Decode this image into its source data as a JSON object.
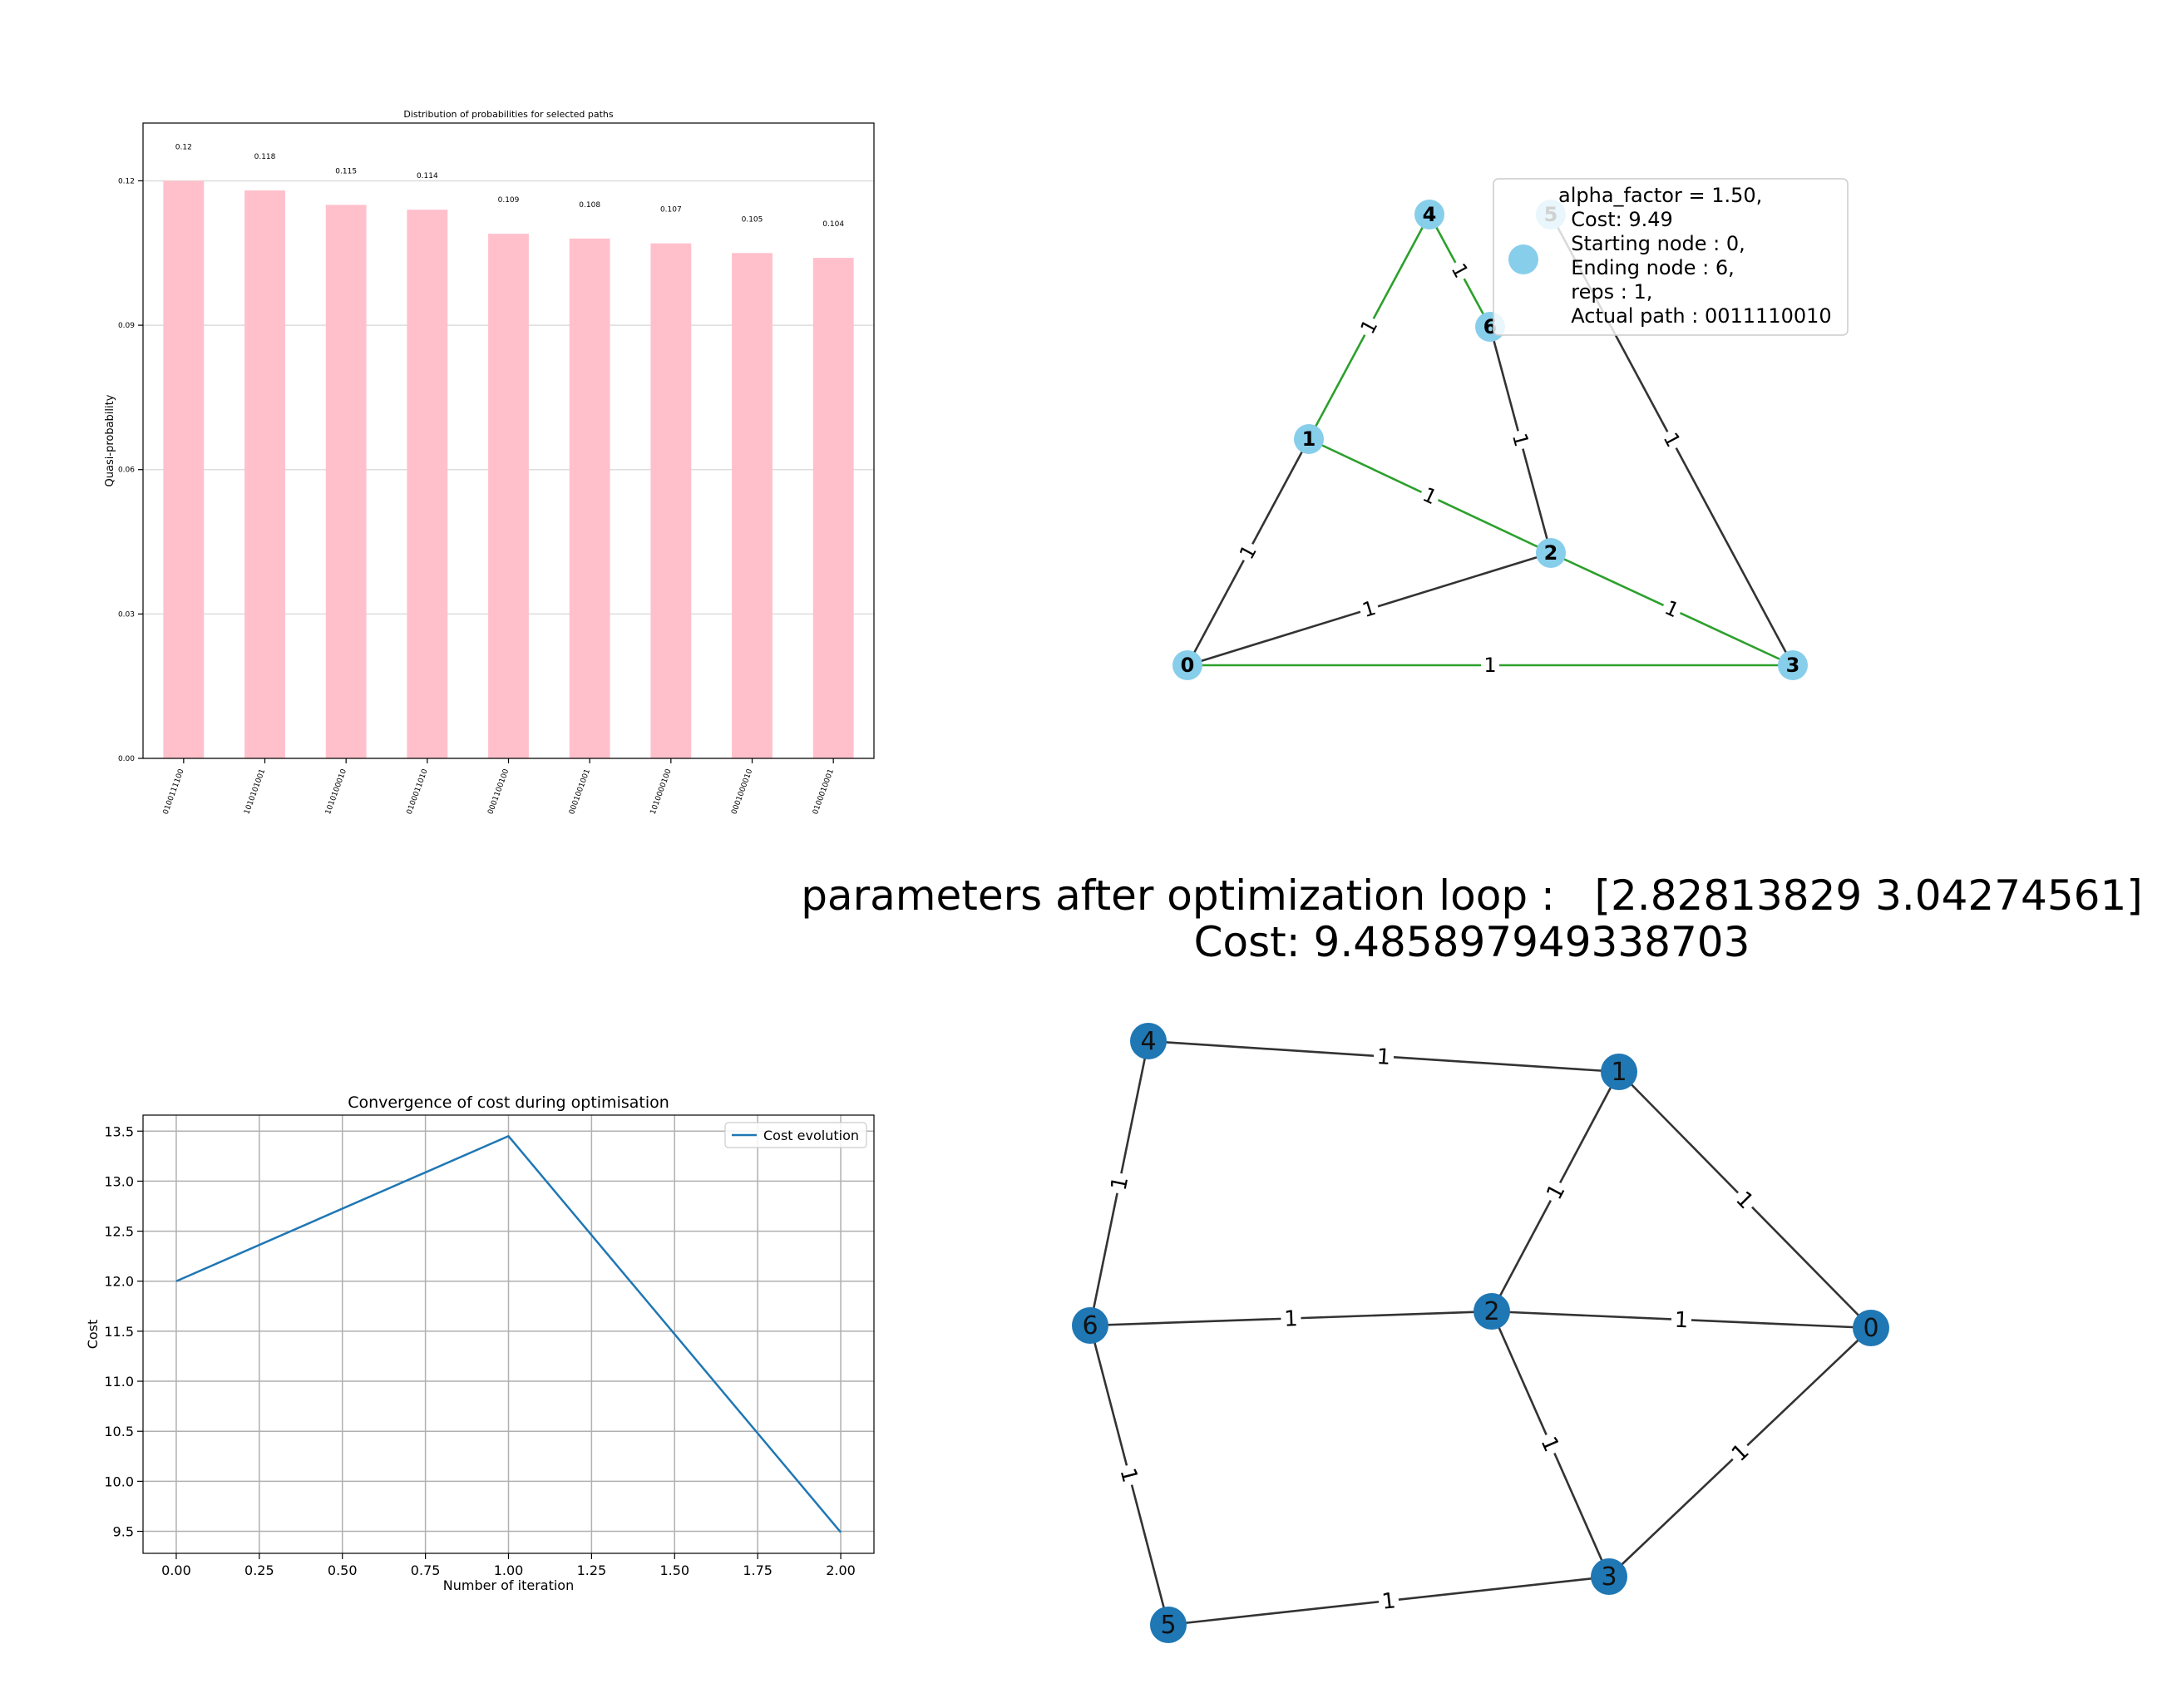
{
  "chart_data": [
    {
      "type": "bar",
      "title": "Distribution of probabilities for selected paths",
      "xlabel": "",
      "ylabel": "Quasi-probability",
      "categories": [
        "0100111100",
        "1010101001",
        "1010100010",
        "0100011010",
        "0001100100",
        "0001001001",
        "1010000100",
        "0001000010",
        "0100010001"
      ],
      "values": [
        0.12,
        0.118,
        0.115,
        0.114,
        0.109,
        0.108,
        0.107,
        0.105,
        0.104
      ],
      "value_labels": [
        "0.12",
        "0.118",
        "0.115",
        "0.114",
        "0.109",
        "0.108",
        "0.107",
        "0.105",
        "0.104"
      ],
      "ylim": [
        0,
        0.132
      ],
      "yticks": [
        0.0,
        0.03,
        0.06,
        0.09,
        0.12
      ],
      "ytick_labels": [
        "0.00",
        "0.03",
        "0.06",
        "0.09",
        "0.12"
      ],
      "grid": "horizontal",
      "bar_color": "#ffc0cb"
    },
    {
      "type": "line",
      "title": "Convergence of cost during optimisation",
      "xlabel": "Number of iteration",
      "ylabel": "Cost",
      "series": [
        {
          "name": "Cost evolution",
          "x": [
            0,
            1,
            2
          ],
          "y": [
            12.0,
            13.45,
            9.49
          ],
          "color": "#1f77b4"
        }
      ],
      "xlim": [
        -0.1,
        2.1
      ],
      "ylim": [
        9.28,
        13.66
      ],
      "xticks": [
        0.0,
        0.25,
        0.5,
        0.75,
        1.0,
        1.25,
        1.5,
        1.75,
        2.0
      ],
      "xtick_labels": [
        "0.00",
        "0.25",
        "0.50",
        "0.75",
        "1.00",
        "1.25",
        "1.50",
        "1.75",
        "2.00"
      ],
      "yticks": [
        9.5,
        10.0,
        10.5,
        11.0,
        11.5,
        12.0,
        12.5,
        13.0,
        13.5
      ],
      "ytick_labels": [
        "9.5",
        "10.0",
        "10.5",
        "11.0",
        "11.5",
        "12.0",
        "12.5",
        "13.0",
        "13.5"
      ],
      "grid": true,
      "legend": "top-right"
    }
  ],
  "graph_top": {
    "node_color": "#87ceeb",
    "path_color": "#2ca02c",
    "edge_color": "#333333",
    "nodes": [
      "0",
      "1",
      "2",
      "3",
      "4",
      "5",
      "6"
    ],
    "edges": [
      {
        "from": "0",
        "to": "1",
        "weight": "1",
        "on_path": false
      },
      {
        "from": "0",
        "to": "2",
        "weight": "1",
        "on_path": false
      },
      {
        "from": "0",
        "to": "3",
        "weight": "1",
        "on_path": true
      },
      {
        "from": "1",
        "to": "2",
        "weight": "1",
        "on_path": true
      },
      {
        "from": "1",
        "to": "4",
        "weight": "1",
        "on_path": true
      },
      {
        "from": "2",
        "to": "3",
        "weight": "1",
        "on_path": true
      },
      {
        "from": "2",
        "to": "6",
        "weight": "1",
        "on_path": false
      },
      {
        "from": "4",
        "to": "6",
        "weight": "1",
        "on_path": true
      },
      {
        "from": "5",
        "to": "3",
        "weight": "1",
        "on_path": false
      }
    ],
    "legend_lines": [
      "alpha_factor = 1.50,",
      "  Cost: 9.49",
      "  Starting node : 0,",
      "  Ending node : 6,",
      "  reps : 1,",
      "  Actual path : 0011110010"
    ]
  },
  "caption": {
    "line1": "parameters after optimization loop :   [2.82813829 3.04274561]",
    "line2": "Cost: 9.485897949338703"
  },
  "graph_bottom": {
    "node_color": "#1f77b4",
    "edge_color": "#333333",
    "nodes": [
      "0",
      "1",
      "2",
      "3",
      "4",
      "5",
      "6"
    ],
    "edges": [
      {
        "from": "4",
        "to": "1",
        "weight": "1"
      },
      {
        "from": "4",
        "to": "6",
        "weight": "1"
      },
      {
        "from": "1",
        "to": "2",
        "weight": "1"
      },
      {
        "from": "1",
        "to": "0",
        "weight": "1"
      },
      {
        "from": "6",
        "to": "2",
        "weight": "1"
      },
      {
        "from": "2",
        "to": "0",
        "weight": "1"
      },
      {
        "from": "6",
        "to": "5",
        "weight": "1"
      },
      {
        "from": "2",
        "to": "3",
        "weight": "1"
      },
      {
        "from": "0",
        "to": "3",
        "weight": "1"
      },
      {
        "from": "5",
        "to": "3",
        "weight": "1"
      }
    ]
  }
}
